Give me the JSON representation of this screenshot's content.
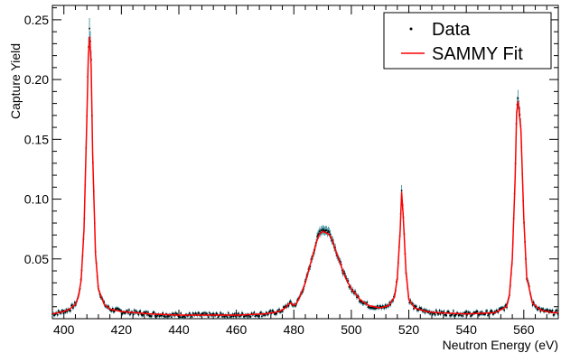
{
  "chart_data": {
    "type": "line",
    "title": "",
    "xlabel": "Neutron Energy (eV)",
    "ylabel": "Capture Yield",
    "xlim": [
      396,
      572
    ],
    "ylim": [
      0.0,
      0.262
    ],
    "grid": false,
    "legend_placement": "top-right",
    "x_ticks": [
      400,
      420,
      440,
      460,
      480,
      500,
      520,
      540,
      560
    ],
    "y_ticks": [
      0.05,
      0.1,
      0.15,
      0.2,
      0.25
    ],
    "x_tick_labels": [
      "400",
      "420",
      "440",
      "460",
      "480",
      "500",
      "520",
      "540",
      "560"
    ],
    "y_tick_labels": [
      "0.05",
      "0.10",
      "0.15",
      "0.20",
      "0.25"
    ],
    "series": [
      {
        "name": "Data",
        "style": "points",
        "color": "#000000",
        "errorbar_color": "#1a7a8a",
        "x": [
          396,
          398,
          400,
          402,
          404,
          405,
          406,
          407,
          408,
          408.5,
          409,
          409.5,
          410,
          411,
          412,
          414,
          416,
          420,
          425,
          430,
          440,
          450,
          460,
          470,
          475,
          477,
          478,
          479,
          480,
          481,
          482,
          484,
          486,
          488,
          489,
          490,
          491,
          492,
          493,
          494,
          496,
          498,
          500,
          503,
          506,
          510,
          513,
          515,
          516,
          517,
          517.5,
          518,
          519,
          520,
          522,
          526,
          530,
          540,
          550,
          554,
          555,
          556,
          557,
          557.5,
          558,
          559,
          560,
          561,
          563,
          566,
          570,
          572
        ],
        "y": [
          0.004,
          0.005,
          0.006,
          0.008,
          0.012,
          0.018,
          0.032,
          0.075,
          0.17,
          0.225,
          0.245,
          0.215,
          0.14,
          0.055,
          0.025,
          0.012,
          0.008,
          0.006,
          0.005,
          0.004,
          0.003,
          0.003,
          0.003,
          0.004,
          0.006,
          0.009,
          0.012,
          0.013,
          0.011,
          0.013,
          0.018,
          0.03,
          0.048,
          0.066,
          0.073,
          0.075,
          0.074,
          0.073,
          0.069,
          0.062,
          0.047,
          0.034,
          0.025,
          0.016,
          0.011,
          0.009,
          0.011,
          0.018,
          0.035,
          0.075,
          0.108,
          0.09,
          0.04,
          0.016,
          0.009,
          0.006,
          0.005,
          0.004,
          0.005,
          0.01,
          0.02,
          0.05,
          0.12,
          0.175,
          0.185,
          0.16,
          0.085,
          0.035,
          0.013,
          0.007,
          0.005,
          0.005
        ]
      },
      {
        "name": "SAMMY Fit",
        "style": "line",
        "color": "#ff0000",
        "x": [
          396,
          398,
          400,
          402,
          404,
          405,
          406,
          407,
          408,
          408.5,
          409,
          409.5,
          410,
          411,
          412,
          414,
          416,
          420,
          425,
          430,
          440,
          450,
          460,
          470,
          475,
          477,
          478,
          479,
          480,
          481,
          482,
          484,
          486,
          488,
          489,
          490,
          491,
          492,
          493,
          494,
          496,
          498,
          500,
          503,
          506,
          510,
          513,
          515,
          516,
          517,
          517.5,
          518,
          519,
          520,
          522,
          526,
          530,
          540,
          550,
          554,
          555,
          556,
          557,
          557.5,
          558,
          559,
          560,
          561,
          563,
          566,
          570,
          572
        ],
        "y": [
          0.004,
          0.005,
          0.006,
          0.008,
          0.012,
          0.018,
          0.032,
          0.075,
          0.168,
          0.22,
          0.236,
          0.21,
          0.138,
          0.054,
          0.025,
          0.012,
          0.008,
          0.006,
          0.005,
          0.004,
          0.003,
          0.003,
          0.003,
          0.004,
          0.006,
          0.009,
          0.012,
          0.013,
          0.011,
          0.013,
          0.018,
          0.03,
          0.048,
          0.065,
          0.071,
          0.073,
          0.072,
          0.071,
          0.068,
          0.061,
          0.047,
          0.034,
          0.025,
          0.016,
          0.011,
          0.009,
          0.011,
          0.018,
          0.034,
          0.074,
          0.106,
          0.088,
          0.04,
          0.016,
          0.009,
          0.006,
          0.005,
          0.004,
          0.005,
          0.01,
          0.02,
          0.05,
          0.118,
          0.172,
          0.182,
          0.158,
          0.084,
          0.035,
          0.013,
          0.007,
          0.005,
          0.005
        ]
      }
    ]
  },
  "legend": {
    "items": [
      {
        "label": "Data",
        "symbol": "dot",
        "color": "#000000"
      },
      {
        "label": "SAMMY Fit",
        "symbol": "line",
        "color": "#ff0000"
      }
    ]
  }
}
